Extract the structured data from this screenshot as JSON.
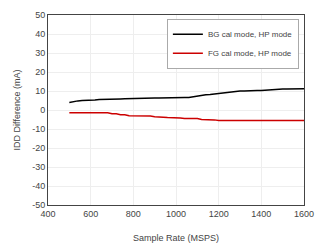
{
  "chart_data": {
    "type": "line",
    "xlabel": "Sample Rate (MSPS)",
    "ylabel": "IDD Difference (mA)",
    "xlim": [
      400,
      1600
    ],
    "ylim": [
      -50,
      50
    ],
    "xticks": [
      400,
      600,
      800,
      1000,
      1200,
      1400,
      1600
    ],
    "yticks": [
      -50,
      -40,
      -30,
      -20,
      -10,
      0,
      10,
      20,
      30,
      40,
      50
    ],
    "grid": true,
    "legend": "upper right",
    "x": [
      500,
      520,
      540,
      560,
      580,
      600,
      620,
      640,
      660,
      680,
      700,
      720,
      740,
      760,
      780,
      800,
      820,
      840,
      860,
      880,
      900,
      920,
      940,
      960,
      980,
      1000,
      1020,
      1040,
      1060,
      1080,
      1100,
      1120,
      1140,
      1160,
      1180,
      1200,
      1220,
      1240,
      1260,
      1280,
      1300,
      1320,
      1340,
      1360,
      1380,
      1400,
      1420,
      1440,
      1460,
      1480,
      1500,
      1520,
      1540,
      1560,
      1580,
      1600
    ],
    "series": [
      {
        "name": "BG cal mode, HP mode",
        "color": "#000000",
        "values": [
          4.0,
          4.5,
          4.8,
          5.0,
          5.0,
          5.2,
          5.3,
          5.5,
          5.5,
          5.6,
          5.7,
          5.8,
          5.8,
          5.9,
          6.0,
          6.0,
          6.1,
          6.2,
          6.2,
          6.3,
          6.3,
          6.3,
          6.4,
          6.4,
          6.5,
          6.5,
          6.5,
          6.6,
          6.6,
          7.0,
          7.5,
          8.0,
          8.0,
          8.2,
          8.5,
          8.8,
          9.0,
          9.2,
          9.5,
          9.8,
          10.0,
          10.0,
          10.2,
          10.2,
          10.3,
          10.3,
          10.5,
          10.7,
          10.8,
          10.8,
          11.0,
          11.0,
          11.0,
          11.1,
          11.2,
          11.2
        ]
      },
      {
        "name": "FG cal mode, HP mode",
        "color": "#cc0000",
        "values": [
          -1.5,
          -1.5,
          -1.5,
          -1.5,
          -1.5,
          -1.5,
          -1.5,
          -1.5,
          -1.5,
          -1.5,
          -2.0,
          -2.0,
          -2.5,
          -2.5,
          -3.0,
          -3.0,
          -3.0,
          -3.0,
          -3.0,
          -3.2,
          -3.5,
          -3.5,
          -3.8,
          -4.0,
          -4.0,
          -4.2,
          -4.2,
          -4.5,
          -4.5,
          -4.5,
          -4.5,
          -5.0,
          -5.0,
          -5.0,
          -5.2,
          -5.5,
          -5.5,
          -5.5,
          -5.5,
          -5.5,
          -5.5,
          -5.5,
          -5.5,
          -5.5,
          -5.5,
          -5.5,
          -5.5,
          -5.5,
          -5.5,
          -5.5,
          -5.5,
          -5.5,
          -5.5,
          -5.5,
          -5.5,
          -5.5
        ]
      }
    ]
  }
}
